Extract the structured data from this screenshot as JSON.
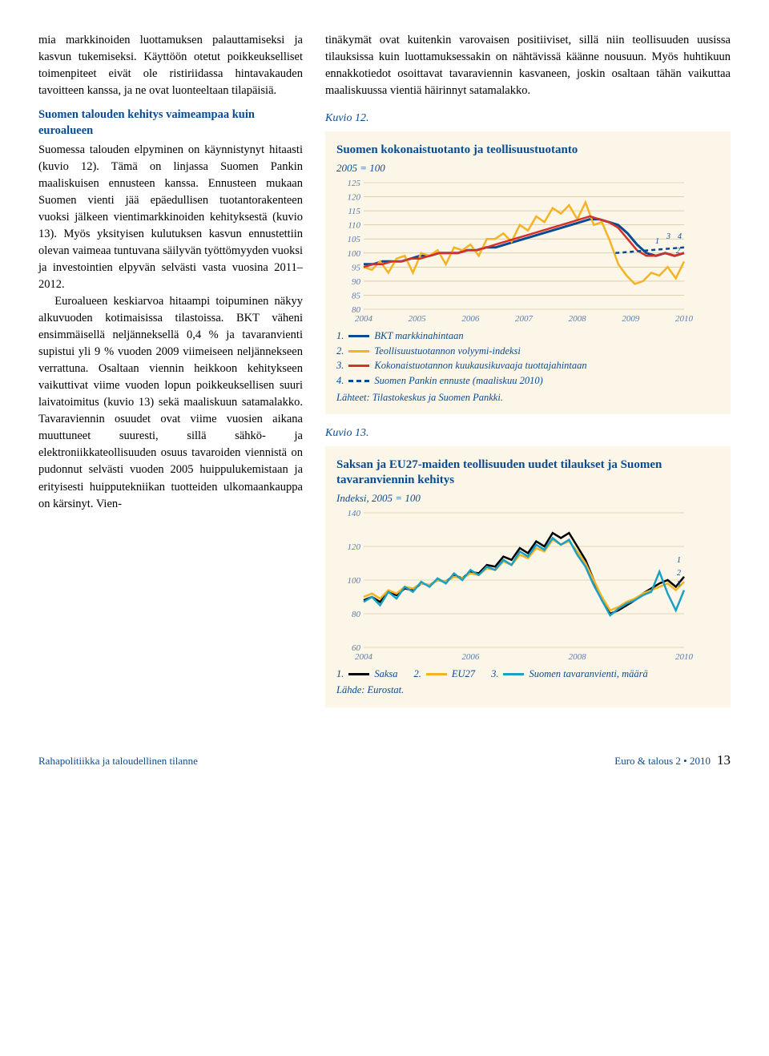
{
  "leftColumn": {
    "para1": "mia markkinoiden luottamuksen palauttamiseksi ja kasvun tukemiseksi. Käyttöön otetut poikkeukselliset toimenpiteet eivät ole ristiriidassa hintavakauden tavoitteen kanssa, ja ne ovat luonteeltaan tilapäisiä.",
    "heading": "Suomen talouden kehitys vaimeampaa kuin euroalueen",
    "para2": "Suomessa talouden elpyminen on käynnistynyt hitaasti (kuvio 12). Tämä on linjassa Suomen Pankin maaliskuisen ennusteen kanssa. Ennusteen mukaan Suomen vienti jää epäedullisen tuotantorakenteen vuoksi jälkeen vientimarkkinoiden kehityksestä (kuvio 13). Myös yksityisen kulutuksen kasvun ennustettiin olevan vaimeaa tuntuvana säilyvän työttömyyden vuoksi ja investointien elpyvän selvästi vasta vuosina 2011–2012.",
    "para3": "Euroalueen keskiarvoa hitaampi toipuminen näkyy alkuvuoden kotimaisissa tilastoissa. BKT väheni ensimmäisellä neljänneksellä 0,4 % ja tavaranvienti supistui yli 9 % vuoden 2009 viimeiseen neljännekseen verrattuna. Osaltaan viennin heikkoon kehitykseen vaikuttivat viime vuoden lopun poikkeuksellisen suuri laivatoimitus (kuvio 13) sekä maaliskuun satamalakko. Tavaraviennin osuudet ovat viime vuosien aikana muuttuneet suuresti, sillä sähkö- ja elektroniikkateollisuuden osuus tavaroiden viennistä on pudonnut selvästi vuoden 2005 huippulukemistaan ja erityisesti huipputekniikan tuotteiden ulkomaankauppa on kärsinyt. Vien-"
  },
  "rightColumn": {
    "para1": "tinäkymät ovat kuitenkin varovaisen positiiviset, sillä niin teollisuuden uusissa tilauksissa kuin luottamuksessakin on nähtävissä käänne nousuun. Myös huhtikuun ennakkotiedot osoittavat tavaraviennin kasvaneen, joskin osaltaan tähän vaikuttaa maaliskuussa vientiä häirinnyt satamalakko."
  },
  "kuvio12": {
    "label": "Kuvio 12.",
    "title": "Suomen kokonaistuotanto ja teollisuustuotanto",
    "subtitle": "2005 = 100",
    "ylim": [
      80,
      125
    ],
    "ytick_step": 5,
    "xcats": [
      "2004",
      "2005",
      "2006",
      "2007",
      "2008",
      "2009",
      "2010"
    ],
    "background": "#fbf6e8",
    "grid_color": "#c9b98a",
    "series": [
      {
        "id": 1,
        "name": "BKT markkinahintaan",
        "color": "#0a4b8f",
        "width": 3,
        "values": [
          96,
          96,
          97,
          97,
          97,
          98,
          99,
          99,
          100,
          100,
          100,
          101,
          101,
          102,
          102,
          103,
          104,
          105,
          106,
          107,
          108,
          109,
          110,
          111,
          112,
          112,
          111,
          110,
          107,
          103,
          100,
          99,
          100,
          99,
          100
        ]
      },
      {
        "id": 2,
        "name": "Teollisuustuotannon volyymi-indeksi",
        "color": "#f4b323",
        "width": 2.5,
        "values": [
          95,
          94,
          97,
          93,
          98,
          99,
          93,
          100,
          99,
          101,
          96,
          102,
          101,
          103,
          99,
          105,
          105,
          107,
          104,
          110,
          108,
          113,
          111,
          116,
          114,
          117,
          112,
          118,
          110,
          111,
          104,
          96,
          92,
          89,
          90,
          93,
          92,
          95,
          91,
          97
        ]
      },
      {
        "id": 3,
        "name": "Kokonaistuotannon kuukausikuvaaja tuottajahintaan",
        "color": "#d72f2a",
        "width": 2.5,
        "values": [
          95,
          96,
          96,
          97,
          97,
          98,
          98,
          99,
          100,
          100,
          100,
          101,
          101,
          102,
          103,
          104,
          105,
          106,
          107,
          108,
          109,
          110,
          111,
          112,
          113,
          112,
          111,
          109,
          105,
          101,
          99,
          99,
          100,
          99,
          100
        ]
      },
      {
        "id": 4,
        "name": "Suomen Pankin ennuste (maaliskuu 2010)",
        "color": "#0a4b8f",
        "width": 2.5,
        "dashed": true,
        "values_x": [
          33,
          42
        ],
        "values": [
          100,
          102
        ]
      }
    ],
    "series_markers": [
      {
        "id": "1",
        "x": 398,
        "y": 80
      },
      {
        "id": "2",
        "x": 424,
        "y": 92
      },
      {
        "id": "3",
        "x": 412,
        "y": 74
      },
      {
        "id": "4",
        "x": 426,
        "y": 74
      }
    ],
    "legend": [
      "BKT markkinahintaan",
      "Teollisuustuotannon volyymi-indeksi",
      "Kokonaistuotannon kuukausikuvaaja tuottajahintaan",
      "Suomen Pankin ennuste (maaliskuu 2010)"
    ],
    "source": "Lähteet: Tilastokeskus ja Suomen Pankki."
  },
  "kuvio13": {
    "label": "Kuvio 13.",
    "title": "Saksan ja EU27-maiden teollisuuden uudet tilaukset ja Suomen tavaranviennin kehitys",
    "subtitle": "Indeksi, 2005 = 100",
    "ylim": [
      60,
      140
    ],
    "ytick_step": 20,
    "xcats": [
      "2004",
      "2006",
      "2008",
      "2010"
    ],
    "background": "#fbf6e8",
    "grid_color": "#c9b98a",
    "series": [
      {
        "id": 1,
        "name": "Saksa",
        "color": "#000000",
        "width": 2.5,
        "values": [
          88,
          90,
          87,
          93,
          91,
          95,
          94,
          98,
          97,
          100,
          99,
          103,
          101,
          105,
          104,
          109,
          108,
          114,
          112,
          119,
          116,
          123,
          120,
          128,
          125,
          128,
          120,
          112,
          100,
          88,
          80,
          82,
          85,
          88,
          92,
          95,
          98,
          100,
          96,
          102
        ]
      },
      {
        "id": 2,
        "name": "EU27",
        "color": "#f4b323",
        "width": 2.5,
        "values": [
          90,
          92,
          89,
          94,
          92,
          96,
          95,
          98,
          97,
          100,
          99,
          102,
          101,
          104,
          103,
          107,
          106,
          111,
          109,
          115,
          113,
          119,
          117,
          124,
          121,
          123,
          117,
          110,
          100,
          90,
          82,
          84,
          87,
          89,
          92,
          94,
          96,
          98,
          94,
          99
        ]
      },
      {
        "id": 3,
        "name": "Suomen tavaranvienti, määrä",
        "color": "#1ba0c4",
        "width": 2.5,
        "values": [
          87,
          90,
          85,
          93,
          89,
          96,
          93,
          99,
          96,
          101,
          98,
          104,
          100,
          106,
          103,
          108,
          106,
          112,
          109,
          117,
          114,
          121,
          118,
          125,
          121,
          124,
          115,
          108,
          97,
          88,
          79,
          83,
          86,
          88,
          91,
          93,
          105,
          92,
          82,
          94
        ]
      }
    ],
    "series_markers": [
      {
        "id": "1",
        "x": 425,
        "y": 66
      },
      {
        "id": "2",
        "x": 425,
        "y": 82
      },
      {
        "id": "3",
        "x": 425,
        "y": 96
      }
    ],
    "legend": [
      "Saksa",
      "EU27",
      "Suomen tavaranvienti, määrä"
    ],
    "source": "Lähde: Eurostat."
  },
  "footer": {
    "left": "Rahapolitiikka ja taloudellinen tilanne",
    "right": "Euro & talous 2 • 2010",
    "pagenum": "13"
  }
}
